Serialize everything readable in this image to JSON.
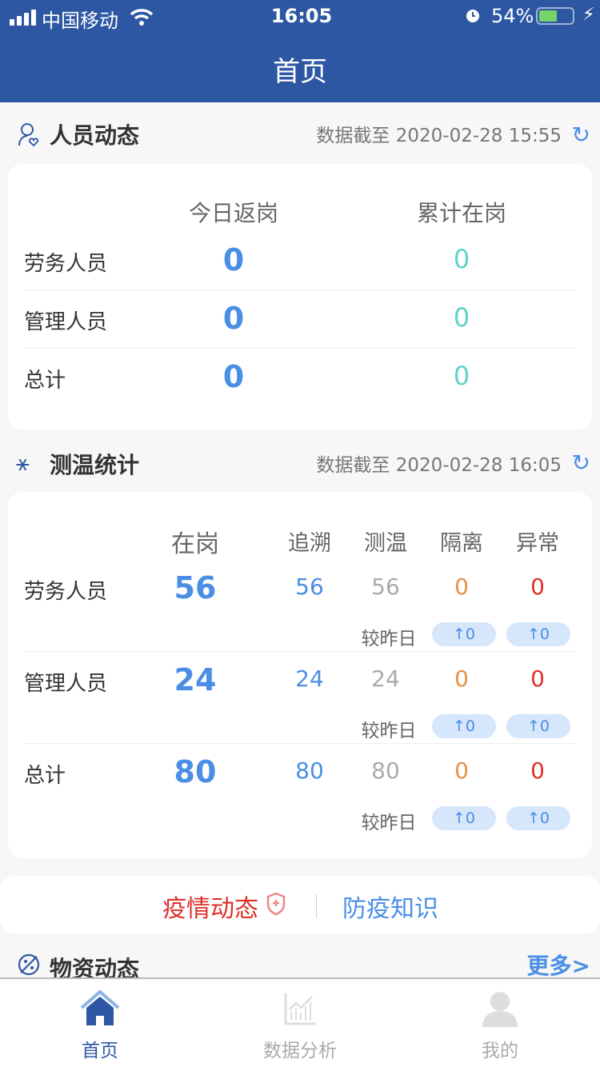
{
  "status": {
    "carrier": "中国移动",
    "time": "16:05",
    "battery": "54%",
    "battery_level": 0.54
  },
  "header": {
    "title": "首页"
  },
  "personnel": {
    "title": "人员动态",
    "updated": "数据截至 2020-02-28 15:55",
    "columns": [
      "今日返岗",
      "累计在岗"
    ],
    "rows": [
      {
        "label": "劳务人员",
        "today": "0",
        "total": "0"
      },
      {
        "label": "管理人员",
        "today": "0",
        "total": "0"
      },
      {
        "label": "总计",
        "today": "0",
        "total": "0"
      }
    ]
  },
  "temperature": {
    "title": "测温统计",
    "updated": "数据截至 2020-02-28 16:05",
    "columns": [
      "在岗",
      "追溯",
      "测温",
      "隔离",
      "异常"
    ],
    "compare_label": "较昨日",
    "rows": [
      {
        "label": "劳务人员",
        "onduty": "56",
        "trace": "56",
        "measured": "56",
        "isolated": "0",
        "abnormal": "0",
        "isolated_delta": "↑0",
        "abnormal_delta": "↑0"
      },
      {
        "label": "管理人员",
        "onduty": "24",
        "trace": "24",
        "measured": "24",
        "isolated": "0",
        "abnormal": "0",
        "isolated_delta": "↑0",
        "abnormal_delta": "↑0"
      },
      {
        "label": "总计",
        "onduty": "80",
        "trace": "80",
        "measured": "80",
        "isolated": "0",
        "abnormal": "0",
        "isolated_delta": "↑0",
        "abnormal_delta": "↑0"
      }
    ]
  },
  "links": {
    "epidemic": "疫情动态",
    "knowledge": "防疫知识"
  },
  "supplies": {
    "title": "物资动态",
    "more": "更多>"
  },
  "tabbar": {
    "items": [
      {
        "label": "首页",
        "active": true
      },
      {
        "label": "数据分析"
      },
      {
        "label": "我的"
      }
    ]
  },
  "colors": {
    "primary": "#2d57a3",
    "accent": "#4a8ee6",
    "teal": "#5fd3c6",
    "orange": "#e89148",
    "red": "#e0302a"
  }
}
